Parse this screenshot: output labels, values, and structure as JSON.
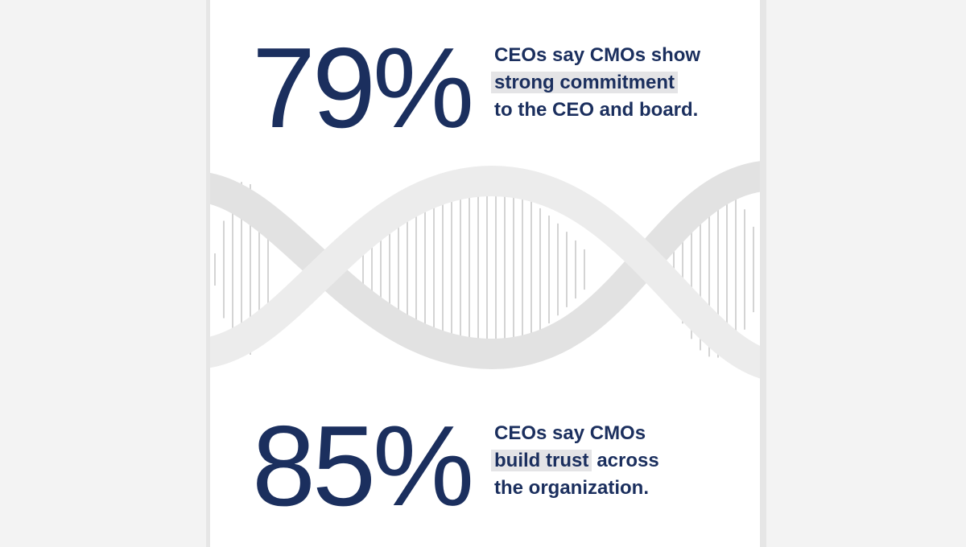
{
  "stats": [
    {
      "value": "79%",
      "lines": [
        [
          {
            "text": "CEOs say CMOs show",
            "highlight": false
          }
        ],
        [
          {
            "text": "strong commitment",
            "highlight": true
          }
        ],
        [
          {
            "text": "to the CEO and board.",
            "highlight": false
          }
        ]
      ]
    },
    {
      "value": "85%",
      "lines": [
        [
          {
            "text": "CEOs say CMOs",
            "highlight": false
          }
        ],
        [
          {
            "text": "build trust",
            "highlight": true
          },
          {
            "text": "across",
            "highlight": false
          }
        ],
        [
          {
            "text": "the organization.",
            "highlight": false
          }
        ]
      ]
    }
  ]
}
